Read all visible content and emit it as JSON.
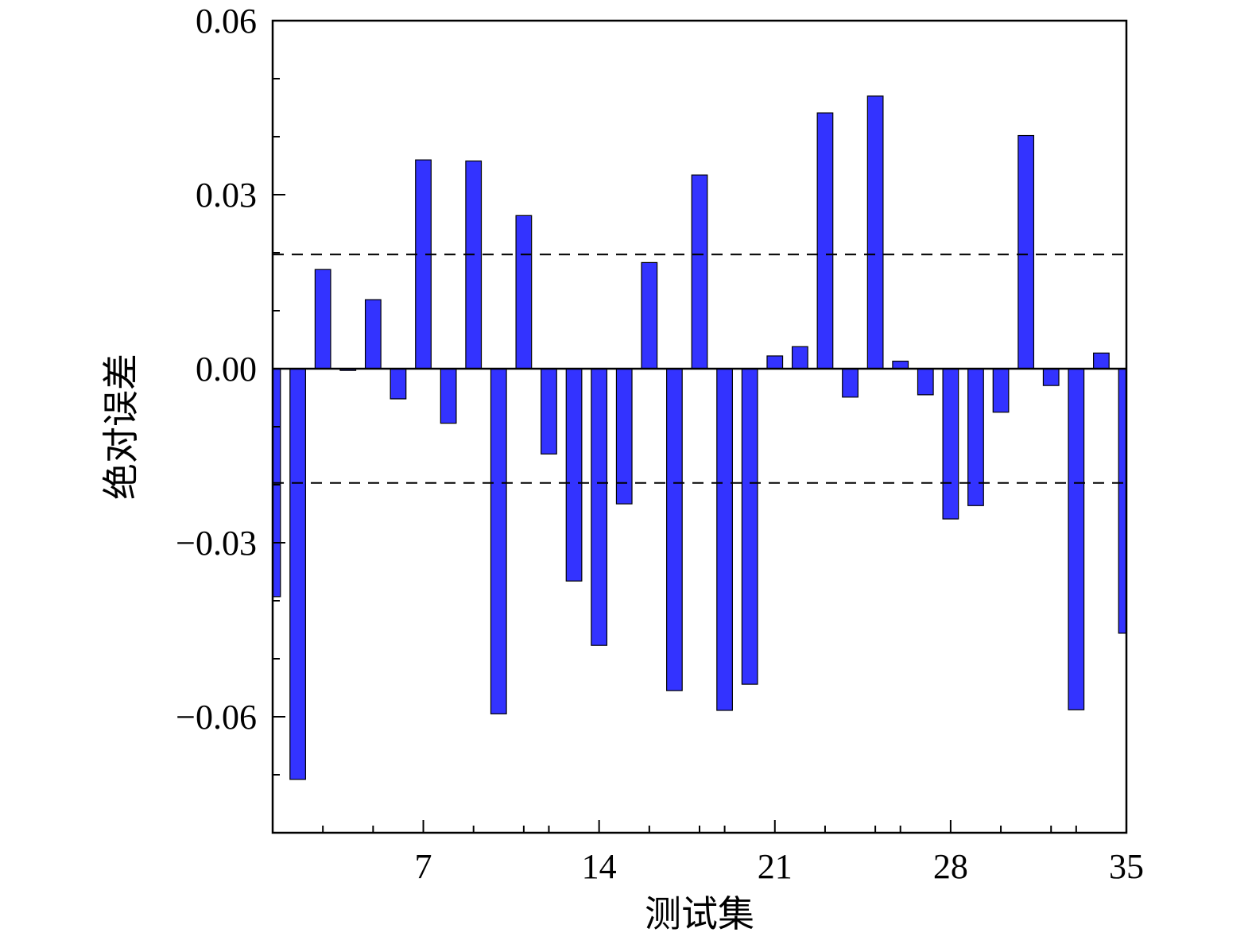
{
  "chart_data": {
    "type": "bar",
    "title": "",
    "xlabel": "测试集",
    "ylabel": "绝对误差",
    "xlim": [
      1,
      35
    ],
    "ylim": [
      -0.08,
      0.06
    ],
    "x_ticks": [
      7,
      14,
      21,
      28,
      35
    ],
    "x_tick_labels": [
      "7",
      "14",
      "21",
      "28",
      "35"
    ],
    "y_ticks": [
      -0.06,
      -0.03,
      0.0,
      0.03,
      0.06
    ],
    "y_tick_labels": [
      "−0.06",
      "−0.03",
      "0.00",
      "0.03",
      "0.06"
    ],
    "reference_lines": [
      0.0197,
      -0.0197
    ],
    "grid": false,
    "bar_color": "#3333ff",
    "x": [
      1,
      2,
      3,
      4,
      5,
      6,
      7,
      8,
      9,
      10,
      11,
      12,
      13,
      14,
      15,
      16,
      17,
      18,
      19,
      20,
      21,
      22,
      23,
      24,
      25,
      26,
      27,
      28,
      29,
      30,
      31,
      32,
      33,
      34,
      35
    ],
    "values": [
      -0.0393,
      -0.0708,
      0.0171,
      -0.0003,
      0.0119,
      -0.0052,
      0.036,
      -0.0094,
      0.0358,
      -0.0595,
      0.0264,
      -0.0147,
      -0.0366,
      -0.0477,
      -0.0233,
      0.0183,
      -0.0555,
      0.0334,
      -0.0589,
      -0.0544,
      0.0022,
      0.0038,
      0.0441,
      -0.0049,
      0.047,
      0.0013,
      -0.0045,
      -0.0259,
      -0.0236,
      -0.0075,
      0.0402,
      -0.0029,
      -0.0588,
      0.0027,
      -0.0456
    ]
  }
}
